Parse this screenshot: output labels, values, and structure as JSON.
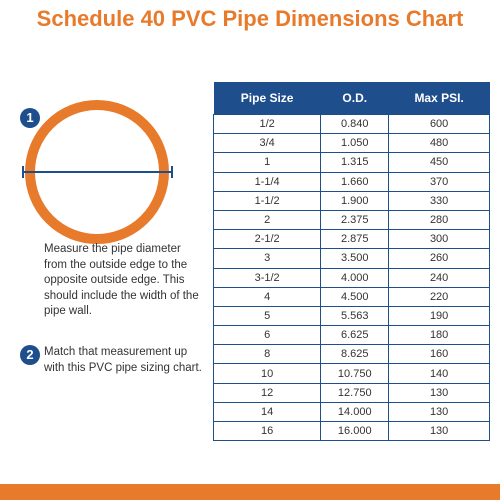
{
  "header": {
    "title": "Schedule 40 PVC Pipe Dimensions Chart"
  },
  "steps": [
    {
      "number": "1",
      "text": "Measure the pipe diameter from the outside edge to the opposite outside edge. This  should include the width of the pipe wall."
    },
    {
      "number": "2",
      "text": "Match that measurement up with this PVC pipe sizing chart."
    }
  ],
  "table": {
    "columns": [
      "Pipe Size",
      "O.D.",
      "Max PSI."
    ],
    "rows": [
      [
        "1/2",
        "0.840",
        "600"
      ],
      [
        "3/4",
        "1.050",
        "480"
      ],
      [
        "1",
        "1.315",
        "450"
      ],
      [
        "1-1/4",
        "1.660",
        "370"
      ],
      [
        "1-1/2",
        "1.900",
        "330"
      ],
      [
        "2",
        "2.375",
        "280"
      ],
      [
        "2-1/2",
        "2.875",
        "300"
      ],
      [
        "3",
        "3.500",
        "260"
      ],
      [
        "3-1/2",
        "4.000",
        "240"
      ],
      [
        "4",
        "4.500",
        "220"
      ],
      [
        "5",
        "5.563",
        "190"
      ],
      [
        "6",
        "6.625",
        "180"
      ],
      [
        "8",
        "8.625",
        "160"
      ],
      [
        "10",
        "10.750",
        "140"
      ],
      [
        "12",
        "12.750",
        "130"
      ],
      [
        "14",
        "14.000",
        "130"
      ],
      [
        "16",
        "16.000",
        "130"
      ]
    ]
  }
}
